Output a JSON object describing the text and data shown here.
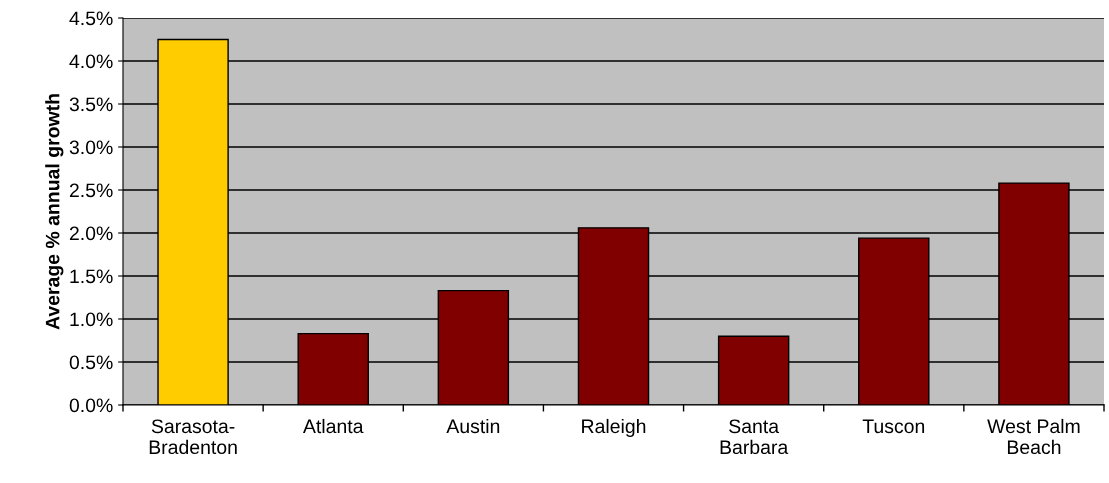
{
  "chart_data": {
    "type": "bar",
    "ylabel": "Average % annual growth",
    "categories": [
      "Sarasota-\nBradenton",
      "Atlanta",
      "Austin",
      "Raleigh",
      "Santa\nBarbara",
      "Tuscon",
      "West Palm\nBeach"
    ],
    "values": [
      4.25,
      0.83,
      1.33,
      2.06,
      0.8,
      1.94,
      2.58
    ],
    "colors": [
      "#ffcc00",
      "#800000",
      "#800000",
      "#800000",
      "#800000",
      "#800000",
      "#800000"
    ],
    "ylim": [
      0,
      4.5
    ],
    "yticks": [
      {
        "value": 0,
        "label": "0.0%"
      },
      {
        "value": 0.5,
        "label": "0.5%"
      },
      {
        "value": 1,
        "label": "1.0%"
      },
      {
        "value": 1.5,
        "label": "1.5%"
      },
      {
        "value": 2,
        "label": "2.0%"
      },
      {
        "value": 2.5,
        "label": "2.5%"
      },
      {
        "value": 3,
        "label": "3.0%"
      },
      {
        "value": 3.5,
        "label": "3.5%"
      },
      {
        "value": 4,
        "label": "4.0%"
      },
      {
        "value": 4.5,
        "label": "4.5%"
      }
    ],
    "grid": "y"
  }
}
